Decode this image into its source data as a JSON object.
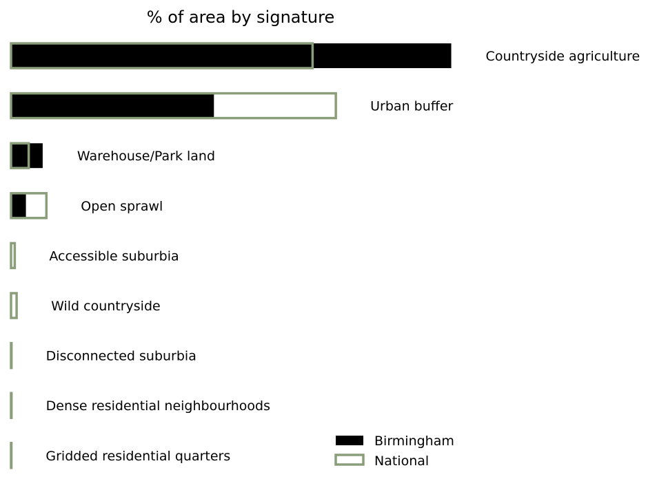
{
  "chart_data": {
    "type": "bar",
    "orientation": "horizontal",
    "title": "% of area by signature",
    "xlabel": "",
    "ylabel": "",
    "axes_visible": false,
    "grid": false,
    "legend_position": "bottom-right",
    "categories": [
      "Countryside agriculture",
      "Urban buffer",
      "Warehouse/Park land",
      "Open sprawl",
      "Accessible suburbia",
      "Wild countryside",
      "Disconnected suburbia",
      "Dense residential neighbourhoods",
      "Gridded residential quarters"
    ],
    "series": [
      {
        "name": "Birmingham",
        "style": "filled",
        "color": "#000000",
        "values": [
          47.3,
          21.8,
          3.4,
          1.6,
          0.1,
          0.1,
          0.05,
          0.05,
          0.03
        ]
      },
      {
        "name": "National",
        "style": "outline",
        "color": "#8b9e7a",
        "values": [
          32.4,
          34.9,
          1.9,
          3.8,
          0.4,
          0.6,
          0.05,
          0.05,
          0.03
        ]
      }
    ]
  }
}
